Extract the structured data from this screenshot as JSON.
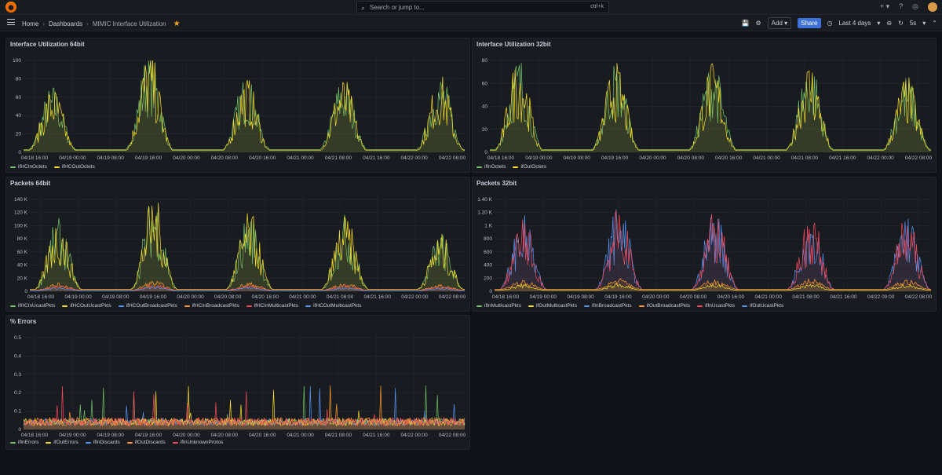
{
  "search": {
    "placeholder": "Search or jump to...",
    "shortcut": "ctrl+k"
  },
  "breadcrumbs": [
    "Home",
    "Dashboards",
    "MIMIC Interface Utilization"
  ],
  "toolbar": {
    "add_label": "Add",
    "share_label": "Share",
    "time_range": "Last 4 days",
    "refresh": "5s"
  },
  "x_ticks": [
    "04/18 16:00",
    "04/19 00:00",
    "04/19 08:00",
    "04/19 16:00",
    "04/20 00:00",
    "04/20 08:00",
    "04/20 16:00",
    "04/21 00:00",
    "04/21 08:00",
    "04/21 16:00",
    "04/22 00:00",
    "04/22 08:00"
  ],
  "colors": {
    "green": "#73bf69",
    "yellow": "#fade2a",
    "blue": "#5794f2",
    "orange": "#ff9830",
    "red": "#f2495c"
  },
  "panels": {
    "util64": {
      "title": "Interface Utilization 64bit",
      "legend": [
        "ifHCInOctets",
        "ifHCOutOctets"
      ]
    },
    "util32": {
      "title": "Interface Utilization 32bit",
      "legend": [
        "ifInOctets",
        "ifOutOctets"
      ]
    },
    "pkts64": {
      "title": "Packets 64bit",
      "legend": [
        "ifHCInUcastPkts",
        "ifHCOutUcastPkts",
        "ifHCOutBroadcastPkts",
        "ifHCInBroadcastPkts",
        "ifHCInMulticastPkts",
        "ifHCOutMulticastPkts"
      ]
    },
    "pkts32": {
      "title": "Packets 32bit",
      "legend": [
        "ifInMulticastPkts",
        "ifOutMulticastPkts",
        "ifInBroadcastPkts",
        "ifOutBroadcastPkts",
        "ifInUcastPkts",
        "ifOutUcastPkts"
      ]
    },
    "errors": {
      "title": "% Errors",
      "legend": [
        "ifInErrors",
        "ifOutErrors",
        "ifInDiscards",
        "ifOutDiscards",
        "ifInUnknownProtos"
      ]
    }
  },
  "chart_data": [
    {
      "type": "area",
      "title": "Interface Utilization 64bit",
      "y_ticks": [
        "0",
        "20",
        "40",
        "60",
        "80",
        "100"
      ],
      "ylim": [
        0,
        100
      ],
      "series": [
        {
          "name": "ifHCInOctets",
          "color": "#73bf69"
        },
        {
          "name": "ifHCOutOctets",
          "color": "#fade2a"
        }
      ],
      "peaks": [
        65,
        100,
        75,
        74,
        77
      ]
    },
    {
      "type": "area",
      "title": "Interface Utilization 32bit",
      "y_ticks": [
        "0",
        "20",
        "40",
        "60",
        "80"
      ],
      "ylim": [
        0,
        90
      ],
      "series": [
        {
          "name": "ifInOctets",
          "color": "#73bf69"
        },
        {
          "name": "ifOutOctets",
          "color": "#fade2a"
        }
      ],
      "peaks": [
        85,
        80,
        80,
        82,
        68
      ]
    },
    {
      "type": "area",
      "title": "Packets 64bit",
      "y_ticks": [
        "0",
        "20 K",
        "40 K",
        "60 K",
        "80 K",
        "100 K",
        "120 K",
        "140 K"
      ],
      "ylim": [
        0,
        140000
      ],
      "series": [
        {
          "name": "ifHCInUcastPkts",
          "color": "#73bf69"
        },
        {
          "name": "ifHCOutUcastPkts",
          "color": "#fade2a"
        },
        {
          "name": "ifHCOutBroadcastPkts",
          "color": "#5794f2"
        },
        {
          "name": "ifHCInBroadcastPkts",
          "color": "#ff9830"
        },
        {
          "name": "ifHCInMulticastPkts",
          "color": "#f2495c"
        },
        {
          "name": "ifHCOutMulticastPkts",
          "color": "#5794f2"
        }
      ],
      "peaks": [
        100000,
        132000,
        110000,
        105000,
        80000
      ]
    },
    {
      "type": "area",
      "title": "Packets 32bit",
      "y_ticks": [
        "0",
        "200",
        "400",
        "600",
        "800",
        "1 K",
        "1.20 K",
        "1.40 K"
      ],
      "ylim": [
        0,
        1400
      ],
      "series": [
        {
          "name": "ifInMulticastPkts",
          "color": "#73bf69"
        },
        {
          "name": "ifOutMulticastPkts",
          "color": "#fade2a"
        },
        {
          "name": "ifInBroadcastPkts",
          "color": "#5794f2"
        },
        {
          "name": "ifOutBroadcastPkts",
          "color": "#ff9830"
        },
        {
          "name": "ifInUcastPkts",
          "color": "#f2495c"
        },
        {
          "name": "ifOutUcastPkts",
          "color": "#5794f2"
        }
      ],
      "peaks": [
        1000,
        1150,
        1100,
        1080,
        1050
      ]
    },
    {
      "type": "area",
      "title": "% Errors",
      "y_ticks": [
        "0",
        "0.1",
        "0.2",
        "0.3",
        "0.4",
        "0.5"
      ],
      "ylim": [
        0,
        0.5
      ],
      "series": [
        {
          "name": "ifInErrors",
          "color": "#73bf69"
        },
        {
          "name": "ifOutErrors",
          "color": "#fade2a"
        },
        {
          "name": "ifInDiscards",
          "color": "#5794f2"
        },
        {
          "name": "ifOutDiscards",
          "color": "#ff9830"
        },
        {
          "name": "ifInUnknownProtos",
          "color": "#f2495c"
        }
      ],
      "peaks": [
        0.45,
        0.38,
        0.32,
        0.27
      ]
    }
  ]
}
